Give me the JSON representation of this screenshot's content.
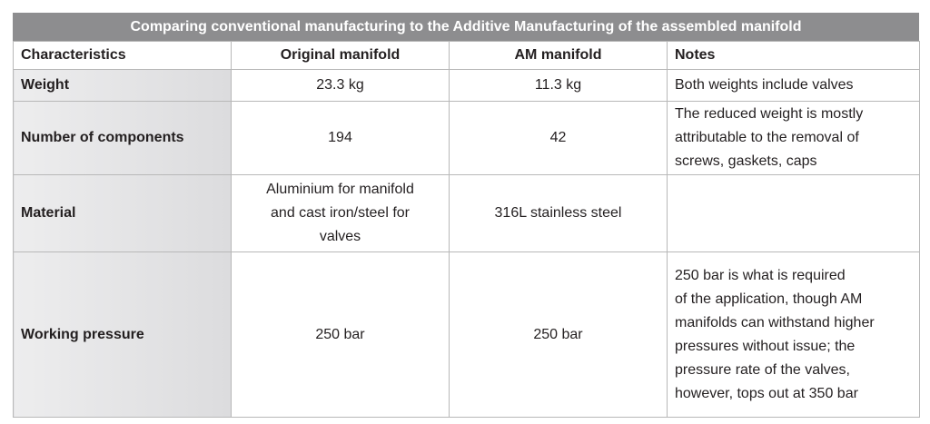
{
  "title": "Comparing conventional manufacturing to the Additive Manufacturing of the assembled manifold",
  "table": {
    "header": [
      "Characteristics",
      "Original manifold",
      "AM manifold",
      "Notes"
    ],
    "rows": [
      [
        "Weight",
        "23.3 kg",
        "11.3 kg",
        "Both weights include valves"
      ],
      [
        "Number of components",
        "194",
        "42",
        [
          "The reduced weight is mostly",
          "attributable to the removal of",
          "screws, gaskets, caps"
        ]
      ],
      [
        "Material",
        [
          "Aluminium for manifold",
          "and cast iron/steel for",
          "valves"
        ],
        "316L stainless steel",
        ""
      ],
      [
        "Working pressure",
        "250 bar",
        "250 bar",
        [
          "250 bar is what is required",
          "of the application, though AM",
          "manifolds can withstand higher",
          "pressures without issue; the",
          "pressure rate of the valves,",
          "however, tops out at 350 bar"
        ]
      ]
    ]
  }
}
